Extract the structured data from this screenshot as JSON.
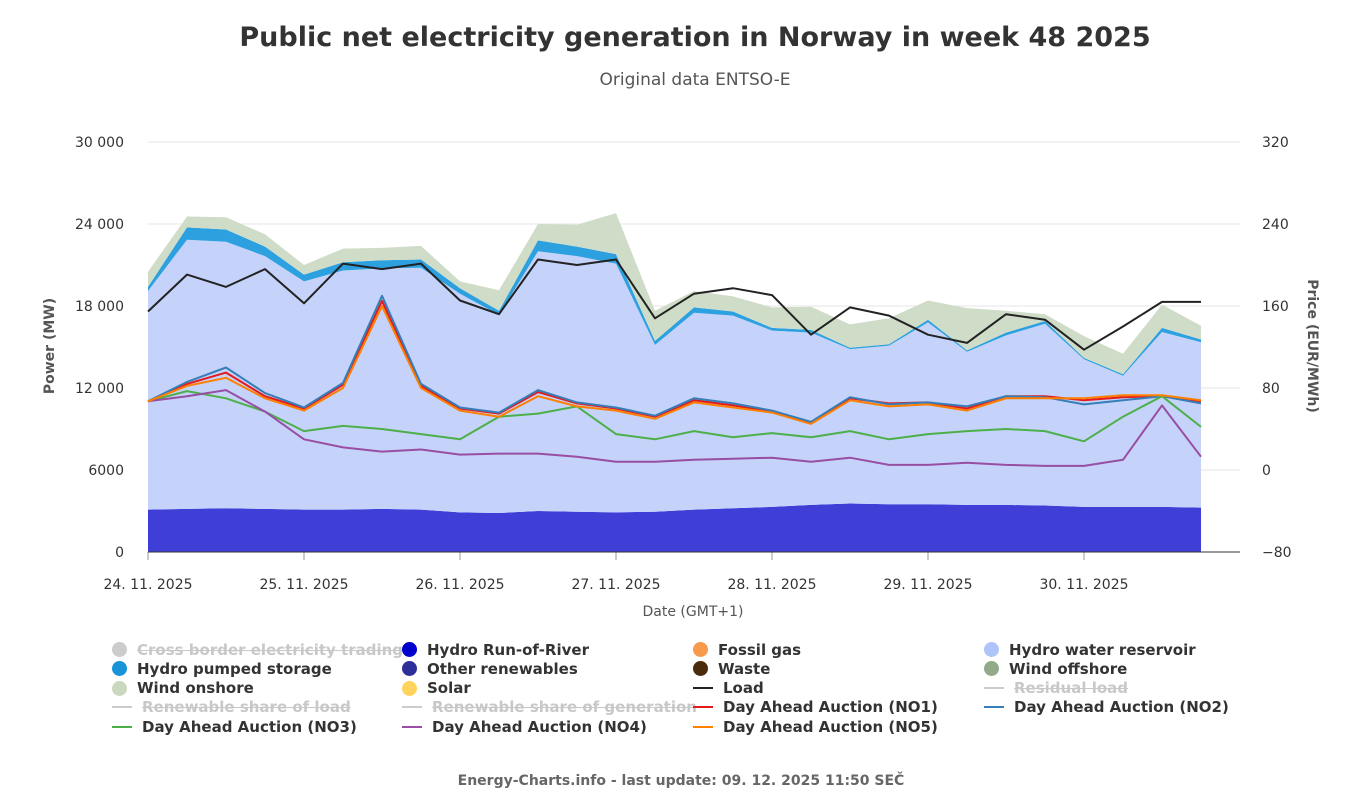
{
  "title": "Public net electricity generation in Norway in week 48 2025",
  "subtitle": "Original data ENTSO-E",
  "footer": "Energy-Charts.info - last update: 09. 12. 2025 11:50 SEČ",
  "chart_data": {
    "type": "area",
    "xlabel": "Date (GMT+1)",
    "ylabel_left": "Power (MW)",
    "ylabel_right": "Price (EUR/MWh)",
    "ylim_left": [
      0,
      30000
    ],
    "ylim_right": [
      -80,
      320
    ],
    "yticks_left": [
      "0",
      "6000",
      "12 000",
      "18 000",
      "24 000",
      "30 000"
    ],
    "yticks_right": [
      "−80",
      "0",
      "80",
      "160",
      "240",
      "320"
    ],
    "xticks": [
      "24. 11. 2025",
      "25. 11. 2025",
      "26. 11. 2025",
      "27. 11. 2025",
      "28. 11. 2025",
      "29. 11. 2025",
      "30. 11. 2025"
    ],
    "x_hours": [
      0,
      6,
      12,
      18,
      24,
      30,
      36,
      42,
      48,
      54,
      60,
      66,
      72,
      78,
      84,
      90,
      96,
      102,
      108,
      114,
      120,
      126,
      132,
      138,
      144,
      150,
      156,
      162
    ],
    "series": [
      {
        "name": "Hydro Run-of-River",
        "axis": "left",
        "kind": "stack",
        "color": "#3f3fd8",
        "values": [
          3100,
          3150,
          3200,
          3150,
          3100,
          3100,
          3150,
          3100,
          2900,
          2850,
          3000,
          2950,
          2900,
          2950,
          3100,
          3200,
          3300,
          3450,
          3550,
          3500,
          3500,
          3450,
          3450,
          3400,
          3300,
          3300,
          3300,
          3250
        ]
      },
      {
        "name": "Hydro water reservoir",
        "axis": "left",
        "kind": "stack",
        "color": "#c5d3fb",
        "values": [
          16000,
          19700,
          19500,
          18500,
          16700,
          17500,
          17600,
          17700,
          16000,
          14500,
          19000,
          18700,
          18200,
          12200,
          14400,
          14100,
          12900,
          12600,
          11300,
          11600,
          13300,
          11200,
          12400,
          13300,
          10800,
          9600,
          12800,
          12100
        ]
      },
      {
        "name": "Hydro pumped storage",
        "axis": "left",
        "kind": "stack",
        "color": "#2da0e0",
        "values": [
          300,
          900,
          900,
          700,
          500,
          600,
          600,
          600,
          400,
          300,
          800,
          700,
          700,
          300,
          400,
          300,
          200,
          200,
          100,
          100,
          200,
          100,
          200,
          200,
          100,
          100,
          300,
          200
        ]
      },
      {
        "name": "Wind onshore",
        "axis": "left",
        "kind": "stack",
        "color": "#cfdcc8",
        "values": [
          1100,
          800,
          900,
          900,
          700,
          1000,
          900,
          1000,
          500,
          1500,
          1200,
          1600,
          3000,
          2200,
          1200,
          1100,
          1500,
          1700,
          1700,
          1900,
          1400,
          3100,
          1600,
          500,
          1600,
          1500,
          1700,
          1000
        ]
      },
      {
        "name": "Load",
        "axis": "left",
        "kind": "line",
        "color": "#222222",
        "values": [
          17600,
          20300,
          19400,
          20700,
          18200,
          21100,
          20700,
          21100,
          18400,
          17400,
          21400,
          21000,
          21400,
          17100,
          18900,
          19300,
          18800,
          15900,
          17900,
          17300,
          15900,
          15300,
          17400,
          17000,
          14800,
          16500,
          18300,
          18300
        ]
      },
      {
        "name": "Day Ahead Auction (NO1)",
        "axis": "right",
        "kind": "line",
        "color": "#e41a1c",
        "values": [
          67,
          84,
          95,
          72,
          60,
          83,
          165,
          82,
          60,
          55,
          76,
          65,
          60,
          52,
          68,
          63,
          57,
          46,
          70,
          65,
          66,
          60,
          72,
          72,
          68,
          71,
          72,
          67
        ]
      },
      {
        "name": "Day Ahead Auction (NO2)",
        "axis": "right",
        "kind": "line",
        "color": "#377eb8",
        "values": [
          67,
          86,
          100,
          75,
          61,
          85,
          170,
          84,
          61,
          56,
          78,
          66,
          61,
          53,
          70,
          65,
          58,
          47,
          71,
          64,
          66,
          62,
          72,
          71,
          64,
          68,
          72,
          65
        ]
      },
      {
        "name": "Day Ahead Auction (NO3)",
        "axis": "right",
        "kind": "line",
        "color": "#4daf4a",
        "values": [
          67,
          77,
          70,
          57,
          38,
          43,
          40,
          35,
          30,
          52,
          55,
          62,
          35,
          30,
          38,
          32,
          36,
          32,
          38,
          30,
          35,
          38,
          40,
          38,
          28,
          52,
          72,
          42
        ]
      },
      {
        "name": "Day Ahead Auction (NO4)",
        "axis": "right",
        "kind": "line",
        "color": "#984ea3",
        "values": [
          67,
          72,
          78,
          57,
          30,
          22,
          18,
          20,
          15,
          16,
          16,
          13,
          8,
          8,
          10,
          11,
          12,
          8,
          12,
          5,
          5,
          7,
          5,
          4,
          4,
          10,
          63,
          13
        ]
      },
      {
        "name": "Day Ahead Auction (NO5)",
        "axis": "right",
        "kind": "line",
        "color": "#ff7f00",
        "values": [
          67,
          82,
          90,
          70,
          58,
          80,
          160,
          80,
          58,
          52,
          72,
          62,
          58,
          50,
          66,
          61,
          56,
          45,
          68,
          62,
          64,
          58,
          70,
          70,
          70,
          73,
          73,
          68
        ]
      }
    ],
    "legend": [
      {
        "label": "Cross border electricity trading",
        "symbol": "dot",
        "color": "#bdbdbd",
        "hidden": true
      },
      {
        "label": "Hydro Run-of-River",
        "symbol": "dot",
        "color": "#0000cd",
        "hidden": false
      },
      {
        "label": "Fossil gas",
        "symbol": "dot",
        "color": "#f79a4b",
        "hidden": false
      },
      {
        "label": "Hydro water reservoir",
        "symbol": "dot",
        "color": "#afc5f9",
        "hidden": false
      },
      {
        "label": "Hydro pumped storage",
        "symbol": "dot",
        "color": "#1a94d9",
        "hidden": false
      },
      {
        "label": "Other renewables",
        "symbol": "dot",
        "color": "#2f2f99",
        "hidden": false
      },
      {
        "label": "Waste",
        "symbol": "dot",
        "color": "#4a2b0c",
        "hidden": false
      },
      {
        "label": "Wind offshore",
        "symbol": "dot",
        "color": "#92a98a",
        "hidden": false
      },
      {
        "label": "Wind onshore",
        "symbol": "dot",
        "color": "#c9d8bf",
        "hidden": false
      },
      {
        "label": "Solar",
        "symbol": "dot",
        "color": "#ffd45c",
        "hidden": false
      },
      {
        "label": "Load",
        "symbol": "line",
        "color": "#222222",
        "hidden": false
      },
      {
        "label": "Residual load",
        "symbol": "line",
        "color": "#c8c8c8",
        "hidden": true
      },
      {
        "label": "Renewable share of load",
        "symbol": "line",
        "color": "#c8c8c8",
        "hidden": true
      },
      {
        "label": "Renewable share of generation",
        "symbol": "line",
        "color": "#c8c8c8",
        "hidden": true
      },
      {
        "label": "Day Ahead Auction (NO1)",
        "symbol": "line",
        "color": "#e41a1c",
        "hidden": false
      },
      {
        "label": "Day Ahead Auction (NO2)",
        "symbol": "line",
        "color": "#377eb8",
        "hidden": false
      },
      {
        "label": "Day Ahead Auction (NO3)",
        "symbol": "line",
        "color": "#4daf4a",
        "hidden": false
      },
      {
        "label": "Day Ahead Auction (NO4)",
        "symbol": "line",
        "color": "#984ea3",
        "hidden": false
      },
      {
        "label": "Day Ahead Auction (NO5)",
        "symbol": "line",
        "color": "#ff7f00",
        "hidden": false
      }
    ]
  }
}
